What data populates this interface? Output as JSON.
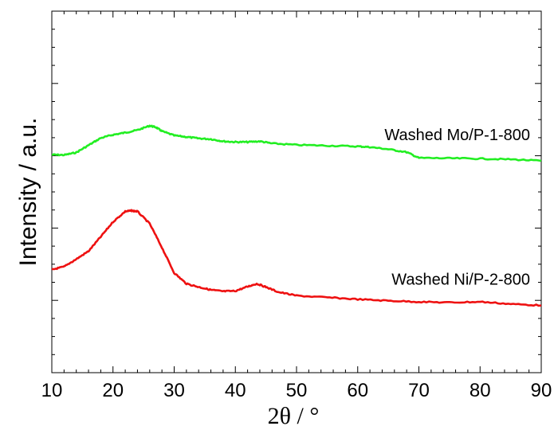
{
  "chart_data": {
    "type": "line",
    "title": "",
    "xlabel": "2θ / °",
    "ylabel": "Intensity / a.u.",
    "xlim": [
      10,
      90
    ],
    "ylim": [
      0,
      100
    ],
    "x_ticks": [
      10,
      20,
      30,
      40,
      50,
      60,
      70,
      80,
      90
    ],
    "x_tick_labels": [
      "10",
      "20",
      "30",
      "40",
      "50",
      "60",
      "70",
      "80",
      "90"
    ],
    "grid": false,
    "y_tick_labels_shown": false,
    "series": [
      {
        "name": "Washed Mo/P-1-800",
        "color": "#22ee22",
        "x": [
          10,
          12,
          14,
          16,
          18,
          20,
          22,
          24,
          26,
          27,
          28,
          30,
          32,
          34,
          36,
          38,
          40,
          42,
          44,
          46,
          50,
          55,
          60,
          62,
          65,
          68,
          70,
          75,
          80,
          85,
          90
        ],
        "y": [
          60.3,
          60.2,
          60.9,
          62.9,
          64.9,
          65.8,
          66.4,
          67.1,
          68.3,
          67.9,
          66.8,
          65.6,
          65.2,
          64.8,
          64.6,
          64.0,
          63.8,
          63.8,
          64.0,
          63.4,
          63.0,
          62.8,
          62.6,
          62.4,
          61.8,
          61.0,
          59.4,
          59.3,
          59.2,
          59.0,
          58.6
        ]
      },
      {
        "name": "Washed Ni/P-2-800",
        "color": "#ee1111",
        "x": [
          10,
          12,
          14,
          16,
          18,
          20,
          22,
          23,
          24,
          26,
          28,
          30,
          32,
          34,
          36,
          38,
          40,
          42,
          43.5,
          45,
          47,
          50,
          55,
          60,
          65,
          70,
          75,
          80,
          85,
          90
        ],
        "y": [
          28.5,
          29.3,
          31.4,
          33.6,
          37.6,
          41.7,
          44.6,
          44.8,
          44.6,
          41.2,
          34.6,
          27.6,
          24.6,
          23.7,
          22.9,
          22.5,
          22.6,
          23.8,
          24.6,
          23.7,
          22.3,
          21.3,
          20.8,
          20.3,
          19.9,
          19.6,
          19.4,
          19.6,
          19.0,
          18.6
        ]
      }
    ]
  }
}
